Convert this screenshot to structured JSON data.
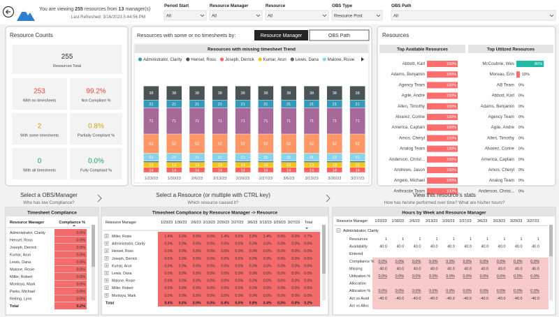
{
  "header": {
    "viewing_prefix": "You are viewing",
    "resource_count": "255",
    "viewing_middle": "resources from",
    "manager_count": "13",
    "viewing_suffix": "manager(s)",
    "last_refreshed": "Last Refreshed: 3/16/2023 5:44:56 PM"
  },
  "filters": [
    {
      "label": "Period Start",
      "value": "All"
    },
    {
      "label": "Resource Manager",
      "value": "All"
    },
    {
      "label": "Resource",
      "value": "All"
    },
    {
      "label": "OBS Type",
      "value": "Resource Post"
    },
    {
      "label": "OBS Path",
      "value": "All"
    }
  ],
  "resource_counts": {
    "title": "Resource Counts",
    "cards": [
      {
        "value": "255",
        "label": "Resources Total",
        "color": "#333333"
      },
      {
        "value": "253",
        "label": "With no timesheets",
        "color": "#E8453C"
      },
      {
        "value": "99.2%",
        "label": "Not Compliant %",
        "color": "#E8453C"
      },
      {
        "value": "2",
        "label": "With some timesheets",
        "color": "#C9A20A"
      },
      {
        "value": "0.8%",
        "label": "Partially Compliant %",
        "color": "#C9A20A"
      },
      {
        "value": "0",
        "label": "With all timesheets",
        "color": "#22A45A"
      },
      {
        "value": "0.0%",
        "label": "Fully Compliant %",
        "color": "#22A45A"
      }
    ]
  },
  "trend_selector": {
    "prompt": "Resources with some or no timesheets by:",
    "buttons": [
      "Resource Manager",
      "OBS Path"
    ]
  },
  "chart_data": {
    "type": "bar",
    "stacked": true,
    "title": "Resources with missing timesheet Trend",
    "categories": [
      "1/23/23",
      "1/30/23",
      "2/6/23",
      "2/13/23",
      "2/20/23",
      "2/27/23",
      "3/6/23",
      "3/13/23",
      "3/20/23",
      "3/27/23"
    ],
    "series": [
      {
        "name": "Administrator, Clarity",
        "color": "#3599B8",
        "values": [
          21,
          21,
          21,
          21,
          21,
          21,
          21,
          21,
          21,
          21
        ]
      },
      {
        "name": "Hensel, Ross",
        "color": "#4A5457",
        "values": [
          38,
          38,
          38,
          38,
          38,
          38,
          38,
          38,
          38,
          38
        ]
      },
      {
        "name": "Joseph, Derrick",
        "color": "#FD625E",
        "values": [
          14,
          14,
          14,
          14,
          14,
          14,
          14,
          14,
          14,
          14
        ]
      },
      {
        "name": "Kumar, Arun",
        "color": "#F2C80F",
        "values": [
          13,
          13,
          13,
          13,
          13,
          13,
          13,
          13,
          13,
          13
        ]
      },
      {
        "name": "Lewis, Dana",
        "color": "#5F6B6D",
        "values": [
          4,
          4,
          4,
          4,
          4,
          4,
          4,
          4,
          4,
          4
        ]
      },
      {
        "name": "Malone, Rosie",
        "color": "#8AD4EB",
        "values": [
          21,
          21,
          21,
          21,
          21,
          21,
          21,
          21,
          21,
          21
        ]
      },
      {
        "color": "#FE9666",
        "values": [
          52,
          52,
          52,
          52,
          52,
          52,
          52,
          52,
          52,
          52
        ]
      },
      {
        "color": "#A66999",
        "values": [
          71,
          71,
          71,
          71,
          71,
          71,
          71,
          71,
          71,
          71
        ]
      }
    ],
    "ylim": [
      0,
      240
    ],
    "grid": false,
    "legend": "top"
  },
  "resources": {
    "title": "Resources",
    "tables": [
      {
        "title": "Top Available Resources",
        "names": [
          "Abbott, Karl",
          "Adams, Benjamin",
          "Agency Team",
          "Agile, Andre",
          "Allen, Timothy",
          "Alvarez, Corine",
          "America, Captain",
          "Amos, Cheryl",
          "Analog Team",
          "Anderson, Christ...",
          "Andrews, Jason",
          "Angelo, Michael",
          "Anthracite Team"
        ],
        "values": [
          100,
          100,
          100,
          100,
          100,
          100,
          100,
          100,
          100,
          100,
          100,
          100,
          100
        ],
        "value_labels": [
          "100%",
          "100%",
          "100%",
          "100%",
          "100%",
          "100%",
          "100%",
          "100%",
          "100%",
          "100%",
          "100%",
          "100%",
          "100%"
        ],
        "colors": [
          "#FD6D6D",
          "#FD6D6D",
          "#FD6D6D",
          "#FD6D6D",
          "#FD6D6D",
          "#FD6D6D",
          "#FD6D6D",
          "#FD6D6D",
          "#FD6D6D",
          "#FD6D6D",
          "#FD6D6D",
          "#FD6D6D",
          "#FD6D6D"
        ],
        "xlim": [
          0,
          100
        ]
      },
      {
        "title": "Top Utilized Resources",
        "names": [
          "McCoubrie, Wes",
          "Moreau, Erin",
          "AB Team",
          "Abbott, Karl",
          "Adams, Benjamin",
          "Agency Team",
          "Agile, Andre",
          "Allen, Timothy",
          "Alvarez, Corine",
          "America, Captain",
          "Amos, Cheryl",
          "Analog Team",
          "Anderson, Christ..."
        ],
        "values": [
          80,
          10,
          0,
          0,
          0,
          0,
          0,
          0,
          0,
          0,
          0,
          0,
          0
        ],
        "value_labels": [
          "80%",
          "10%",
          "0%",
          "0%",
          "0%",
          "0%",
          "0%",
          "0%",
          "0%",
          "0%",
          "0%",
          "0%",
          "0%"
        ],
        "colors": [
          "#1DB9A2",
          "#FD6D6D",
          "#FD6D6D",
          "#FD6D6D",
          "#FD6D6D",
          "#FD6D6D",
          "#FD6D6D",
          "#FD6D6D",
          "#FD6D6D",
          "#FD6D6D",
          "#FD6D6D",
          "#FD6D6D",
          "#FD6D6D"
        ],
        "xlim": [
          0,
          100
        ]
      }
    ]
  },
  "sections": [
    {
      "title": "Select a OBS/Manager",
      "subtitle": "Who has low Compliance?"
    },
    {
      "title": "Select a Resource (or multiple with CTRL key)",
      "subtitle": "Which resource caused it?"
    },
    {
      "title": "View this resource's stats",
      "subtitle": "How has he/she performed over time? What are his/her hours?"
    }
  ],
  "compliance_table": {
    "title": "Timesheet Compliance",
    "columns": [
      "Resource Manager",
      "Compliance %"
    ],
    "rows": [
      [
        "Administrator, Clarity",
        "0.0%"
      ],
      [
        "Hensel, Ross",
        "0.0%"
      ],
      [
        "Joseph, Derrick",
        "0.0%"
      ],
      [
        "Kumar, Arun",
        "0.0%"
      ],
      [
        "Lewis, Dana",
        "0.0%"
      ],
      [
        "Malone, Rosie",
        "0.0%"
      ],
      [
        "Miller, Robert",
        "0.0%"
      ],
      [
        "Montoya, Mark",
        "0.0%"
      ],
      [
        "Parks, Michael",
        "0.0%"
      ],
      [
        "Reiling, Lynn",
        "0.0%"
      ]
    ],
    "total": [
      "Total",
      "0.2%"
    ]
  },
  "manager_resource_matrix": {
    "title": "Timesheet Compliance by Resource Manager -> Resource",
    "columns": [
      "Resource Manager",
      "1/23/23",
      "1/30/23",
      "2/6/23",
      "2/13/23",
      "2/20/23",
      "2/27/23",
      "3/6/23",
      "3/13/23",
      "3/20/23",
      "3/27/23",
      "Total"
    ],
    "rows": [
      [
        "Miller, Rosie",
        "1.4%",
        "0.0%",
        "0.0%",
        "0.0%",
        "1.4%",
        "0.0%",
        "2.8%",
        "1.4%",
        "0.0%",
        "0.0%",
        "0.7%"
      ],
      [
        "Administrator, Clarity",
        "0.0%",
        "0.0%",
        "0.0%",
        "0.0%",
        "0.0%",
        "0.0%",
        "0.0%",
        "0.0%",
        "0.0%",
        "0.0%",
        "0.0%"
      ],
      [
        "Hensel, Ross",
        "0.0%",
        "0.0%",
        "0.0%",
        "0.0%",
        "0.0%",
        "0.0%",
        "0.0%",
        "0.0%",
        "0.0%",
        "0.0%",
        "0.0%"
      ],
      [
        "Joseph, Derrick",
        "0.0%",
        "0.0%",
        "0.0%",
        "0.0%",
        "0.0%",
        "0.0%",
        "0.0%",
        "0.0%",
        "0.0%",
        "0.0%",
        "0.0%"
      ],
      [
        "Kumar, Arun",
        "0.0%",
        "0.0%",
        "0.0%",
        "0.0%",
        "0.0%",
        "0.0%",
        "0.0%",
        "0.0%",
        "0.0%",
        "0.0%",
        "0.0%"
      ],
      [
        "Lewis, Dana",
        "0.0%",
        "0.0%",
        "0.0%",
        "0.0%",
        "0.0%",
        "0.0%",
        "0.0%",
        "0.0%",
        "0.0%",
        "0.0%",
        "0.0%"
      ],
      [
        "Malone, Rosie",
        "0.0%",
        "0.0%",
        "0.0%",
        "0.0%",
        "0.0%",
        "0.0%",
        "0.0%",
        "0.0%",
        "0.0%",
        "0.0%",
        "0.0%"
      ],
      [
        "Miller, Robert",
        "0.0%",
        "0.0%",
        "0.0%",
        "0.0%",
        "0.0%",
        "0.0%",
        "0.0%",
        "0.0%",
        "0.0%",
        "0.0%",
        "0.0%"
      ],
      [
        "Montoya, Mark",
        "0.0%",
        "0.0%",
        "0.0%",
        "0.0%",
        "0.0%",
        "0.0%",
        "0.0%",
        "0.0%",
        "0.0%",
        "0.0%",
        "0.0%"
      ]
    ],
    "total": [
      "Total",
      "0.4%",
      "0.0%",
      "0.0%",
      "0.0%",
      "0.4%",
      "0.0%",
      "0.8%",
      "0.4%",
      "0.0%",
      "0.0%",
      "0.2%"
    ]
  },
  "hours_matrix": {
    "title": "Hours by Week and Resource Manager",
    "columns": [
      "Resource Manager",
      "1/23/23",
      "1/30/23",
      "2/6/23",
      "2/13/23",
      "2/20/23",
      "2/27/23",
      "3/6/23",
      "3/13/23",
      "3/20/23",
      "3/27/23"
    ],
    "group": "Administrator, Clarity",
    "rows": [
      {
        "label": "Resources",
        "highlight": false,
        "cells": [
          "1",
          "1",
          "1",
          "1",
          "1",
          "1",
          "1",
          "1",
          "1",
          "1"
        ]
      },
      {
        "label": "Availability",
        "highlight": false,
        "cells": [
          "40.0",
          "40.0",
          "40.0",
          "40.0",
          "40.0",
          "40.0",
          "40.0",
          "40.0",
          "40.0",
          "40.0"
        ]
      },
      {
        "label": "Entered",
        "highlight": false,
        "cells": [
          null,
          null,
          null,
          null,
          null,
          null,
          null,
          null,
          null,
          null
        ]
      },
      {
        "label": "Compliance %",
        "highlight": true,
        "cells": [
          "0.0%",
          "0.0%",
          "0.0%",
          "0.0%",
          "0.0%",
          "0.0%",
          "0.0%",
          "0.0%",
          "0.0%",
          "0.0%"
        ]
      },
      {
        "label": "Missing",
        "highlight": true,
        "cells": [
          "40.0",
          "40.0",
          "40.0",
          "40.0",
          "40.0",
          "40.0",
          "40.0",
          "40.0",
          "40.0",
          "40.0"
        ]
      },
      {
        "label": "Utilization %",
        "highlight": true,
        "cells": [
          "0.0%",
          "0.0%",
          "0.0%",
          "0.0%",
          "0.0%",
          "0.0%",
          "0.0%",
          "0.0%",
          "0.0%",
          "0.0%"
        ]
      },
      {
        "label": "Allocation",
        "highlight": true,
        "cells": [
          null,
          null,
          null,
          null,
          null,
          null,
          null,
          null,
          null,
          null
        ]
      },
      {
        "label": "Allocation %",
        "highlight": true,
        "cells": [
          "0.0%",
          "0.0%",
          "0.0%",
          "0.0%",
          "0.0%",
          "0.0%",
          "0.0%",
          "0.0%",
          "0.0%",
          "0.0%"
        ]
      },
      {
        "label": "Act vs Avail",
        "highlight": true,
        "cells": [
          "-40.0",
          "-40.0",
          "-40.0",
          "-40.0",
          "-40.0",
          "-40.0",
          "-40.0",
          "-40.0",
          "-40.0",
          "-40.0"
        ]
      },
      {
        "label": "Act vs Alloc",
        "highlight": true,
        "cells": [
          null,
          null,
          null,
          null,
          null,
          null,
          null,
          null,
          null,
          null
        ]
      }
    ]
  }
}
